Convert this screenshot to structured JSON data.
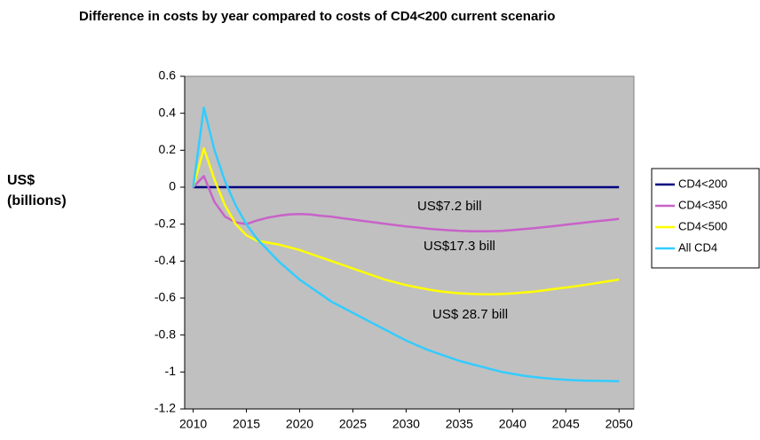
{
  "chart_data": {
    "type": "line",
    "title": "Difference in costs by year compared to costs of CD4<200 current scenario",
    "y_label": "US$ (billions)",
    "x": [
      2010,
      2011,
      2012,
      2013,
      2014,
      2015,
      2016,
      2017,
      2018,
      2019,
      2020,
      2021,
      2022,
      2023,
      2024,
      2025,
      2026,
      2027,
      2028,
      2029,
      2030,
      2031,
      2032,
      2033,
      2034,
      2035,
      2036,
      2037,
      2038,
      2039,
      2040,
      2041,
      2042,
      2043,
      2044,
      2045,
      2046,
      2047,
      2048,
      2049,
      2050
    ],
    "series": [
      {
        "name": "CD4<200",
        "color": "#000080",
        "values": [
          0,
          0,
          0,
          0,
          0,
          0,
          0,
          0,
          0,
          0,
          0,
          0,
          0,
          0,
          0,
          0,
          0,
          0,
          0,
          0,
          0,
          0,
          0,
          0,
          0,
          0,
          0,
          0,
          0,
          0,
          0,
          0,
          0,
          0,
          0,
          0,
          0,
          0,
          0,
          0,
          0
        ]
      },
      {
        "name": "CD4<350",
        "color": "#c862c8",
        "values": [
          0,
          0.06,
          -0.08,
          -0.16,
          -0.19,
          -0.2,
          -0.18,
          -0.165,
          -0.155,
          -0.148,
          -0.145,
          -0.148,
          -0.155,
          -0.16,
          -0.168,
          -0.175,
          -0.183,
          -0.19,
          -0.198,
          -0.205,
          -0.212,
          -0.218,
          -0.224,
          -0.229,
          -0.233,
          -0.236,
          -0.238,
          -0.239,
          -0.238,
          -0.236,
          -0.232,
          -0.227,
          -0.222,
          -0.216,
          -0.21,
          -0.203,
          -0.197,
          -0.19,
          -0.184,
          -0.178,
          -0.172
        ]
      },
      {
        "name": "CD4<500",
        "color": "#ffff00",
        "values": [
          0,
          0.21,
          0.04,
          -0.1,
          -0.2,
          -0.26,
          -0.29,
          -0.3,
          -0.31,
          -0.325,
          -0.34,
          -0.36,
          -0.38,
          -0.4,
          -0.42,
          -0.44,
          -0.46,
          -0.48,
          -0.5,
          -0.515,
          -0.53,
          -0.542,
          -0.553,
          -0.562,
          -0.569,
          -0.574,
          -0.577,
          -0.579,
          -0.58,
          -0.578,
          -0.575,
          -0.57,
          -0.565,
          -0.558,
          -0.55,
          -0.543,
          -0.535,
          -0.527,
          -0.518,
          -0.509,
          -0.5
        ]
      },
      {
        "name": "All CD4",
        "color": "#33ccff",
        "values": [
          0,
          0.43,
          0.2,
          0.03,
          -0.1,
          -0.2,
          -0.28,
          -0.34,
          -0.4,
          -0.45,
          -0.5,
          -0.54,
          -0.58,
          -0.62,
          -0.65,
          -0.68,
          -0.71,
          -0.74,
          -0.77,
          -0.8,
          -0.83,
          -0.855,
          -0.88,
          -0.9,
          -0.92,
          -0.94,
          -0.955,
          -0.97,
          -0.985,
          -1.0,
          -1.01,
          -1.02,
          -1.027,
          -1.033,
          -1.038,
          -1.042,
          -1.045,
          -1.047,
          -1.048,
          -1.049,
          -1.05
        ]
      }
    ],
    "annotations": [
      "US$7.2 bill",
      "US$17.3 bill",
      "US$ 28.7 bill"
    ],
    "xlim": [
      2009.2,
      2051.4
    ],
    "xticks": [
      2010,
      2015,
      2020,
      2025,
      2030,
      2035,
      2040,
      2045,
      2050
    ],
    "ylim": [
      -1.2,
      0.6
    ],
    "yticks": [
      -1.2,
      -1,
      -0.8,
      -0.6,
      -0.4,
      -0.2,
      0,
      0.2,
      0.4,
      0.6
    ],
    "legend": "right",
    "plot_background": "#c0c0c0"
  }
}
